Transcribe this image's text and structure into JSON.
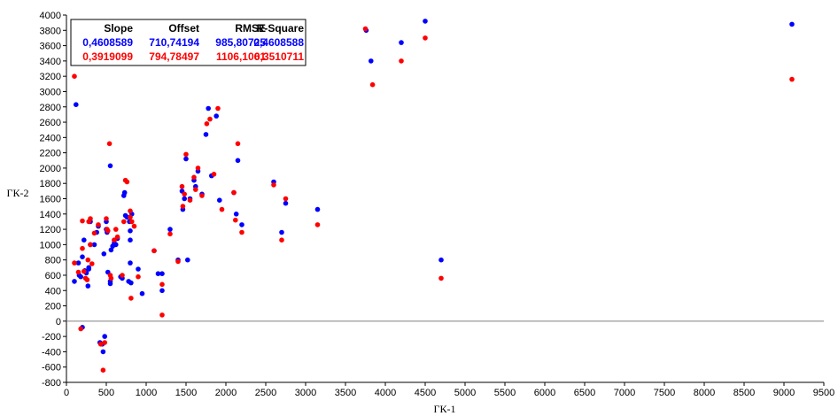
{
  "chart_data": {
    "type": "scatter",
    "xlabel": "ГК-1",
    "ylabel": "ГК-2",
    "xlim": [
      0,
      9500
    ],
    "ylim": [
      -800,
      4000
    ],
    "x_ticks": [
      0,
      500,
      1000,
      1500,
      2000,
      2500,
      3000,
      3500,
      4000,
      4500,
      5000,
      5500,
      6000,
      6500,
      7000,
      7500,
      8000,
      8500,
      9000,
      9500
    ],
    "y_ticks": [
      -800,
      -600,
      -400,
      -200,
      0,
      200,
      400,
      600,
      800,
      1000,
      1200,
      1400,
      1600,
      1800,
      2000,
      2200,
      2400,
      2600,
      2800,
      3000,
      3200,
      3400,
      3600,
      3800,
      4000
    ],
    "grid": false,
    "legend_table": {
      "headers": [
        "Slope",
        "Offset",
        "RMSE",
        "R-Square"
      ],
      "rows": [
        {
          "color": "#0000ff",
          "values": [
            "0,4608589",
            "710,74194",
            "985,80725",
            "0,4608588"
          ]
        },
        {
          "color": "#ff0000",
          "values": [
            "0,3919099",
            "794,78497",
            "1106,1061",
            "0,3510711"
          ]
        }
      ]
    },
    "series": [
      {
        "color": "#0000ff",
        "points": [
          [
            100,
            520
          ],
          [
            120,
            2830
          ],
          [
            150,
            760
          ],
          [
            160,
            600
          ],
          [
            180,
            580
          ],
          [
            200,
            -80
          ],
          [
            200,
            840
          ],
          [
            220,
            1060
          ],
          [
            230,
            660
          ],
          [
            250,
            630
          ],
          [
            270,
            460
          ],
          [
            280,
            700
          ],
          [
            280,
            680
          ],
          [
            300,
            1300
          ],
          [
            300,
            1000
          ],
          [
            350,
            1000
          ],
          [
            380,
            1160
          ],
          [
            400,
            1240
          ],
          [
            420,
            -280
          ],
          [
            450,
            -300
          ],
          [
            460,
            -400
          ],
          [
            470,
            880
          ],
          [
            480,
            -200
          ],
          [
            500,
            1300
          ],
          [
            500,
            1200
          ],
          [
            510,
            1160
          ],
          [
            520,
            640
          ],
          [
            550,
            2030
          ],
          [
            550,
            520
          ],
          [
            550,
            490
          ],
          [
            560,
            930
          ],
          [
            580,
            980
          ],
          [
            600,
            1020
          ],
          [
            600,
            1060
          ],
          [
            620,
            1000
          ],
          [
            640,
            1080
          ],
          [
            680,
            580
          ],
          [
            700,
            560
          ],
          [
            720,
            1640
          ],
          [
            730,
            1680
          ],
          [
            740,
            1380
          ],
          [
            760,
            1360
          ],
          [
            780,
            520
          ],
          [
            790,
            1300
          ],
          [
            800,
            760
          ],
          [
            800,
            1060
          ],
          [
            800,
            1180
          ],
          [
            810,
            500
          ],
          [
            820,
            1400
          ],
          [
            900,
            680
          ],
          [
            950,
            360
          ],
          [
            1100,
            920
          ],
          [
            1150,
            620
          ],
          [
            1200,
            620
          ],
          [
            1200,
            400
          ],
          [
            1300,
            1200
          ],
          [
            1400,
            800
          ],
          [
            1450,
            1700
          ],
          [
            1460,
            1460
          ],
          [
            1480,
            1600
          ],
          [
            1500,
            2120
          ],
          [
            1520,
            800
          ],
          [
            1550,
            1600
          ],
          [
            1600,
            1840
          ],
          [
            1620,
            1760
          ],
          [
            1650,
            1960
          ],
          [
            1700,
            1660
          ],
          [
            1750,
            2440
          ],
          [
            1780,
            2780
          ],
          [
            1820,
            1900
          ],
          [
            1880,
            2680
          ],
          [
            1920,
            1580
          ],
          [
            2100,
            1680
          ],
          [
            2130,
            1400
          ],
          [
            2150,
            2100
          ],
          [
            2200,
            1260
          ],
          [
            2600,
            1820
          ],
          [
            2700,
            1160
          ],
          [
            2750,
            1540
          ],
          [
            3150,
            1460
          ],
          [
            3760,
            3800
          ],
          [
            3820,
            3400
          ],
          [
            4200,
            3640
          ],
          [
            4500,
            3920
          ],
          [
            4700,
            800
          ],
          [
            9100,
            3880
          ]
        ]
      },
      {
        "color": "#ff0000",
        "points": [
          [
            100,
            3200
          ],
          [
            100,
            760
          ],
          [
            150,
            640
          ],
          [
            180,
            -100
          ],
          [
            200,
            950
          ],
          [
            200,
            1310
          ],
          [
            220,
            650
          ],
          [
            240,
            560
          ],
          [
            260,
            540
          ],
          [
            270,
            800
          ],
          [
            280,
            1300
          ],
          [
            300,
            1340
          ],
          [
            300,
            1000
          ],
          [
            320,
            750
          ],
          [
            350,
            1150
          ],
          [
            400,
            1260
          ],
          [
            430,
            -300
          ],
          [
            460,
            -640
          ],
          [
            480,
            -280
          ],
          [
            500,
            1340
          ],
          [
            510,
            1200
          ],
          [
            520,
            1180
          ],
          [
            540,
            2320
          ],
          [
            550,
            600
          ],
          [
            560,
            560
          ],
          [
            600,
            1060
          ],
          [
            620,
            1200
          ],
          [
            640,
            1100
          ],
          [
            700,
            600
          ],
          [
            720,
            1300
          ],
          [
            740,
            1840
          ],
          [
            760,
            1820
          ],
          [
            800,
            1440
          ],
          [
            800,
            1360
          ],
          [
            810,
            300
          ],
          [
            820,
            1300
          ],
          [
            850,
            1240
          ],
          [
            900,
            580
          ],
          [
            1100,
            920
          ],
          [
            1200,
            80
          ],
          [
            1200,
            480
          ],
          [
            1300,
            1140
          ],
          [
            1400,
            780
          ],
          [
            1450,
            1760
          ],
          [
            1460,
            1500
          ],
          [
            1480,
            1660
          ],
          [
            1500,
            2180
          ],
          [
            1550,
            1580
          ],
          [
            1600,
            1880
          ],
          [
            1620,
            1720
          ],
          [
            1650,
            2000
          ],
          [
            1700,
            1640
          ],
          [
            1760,
            2580
          ],
          [
            1800,
            2640
          ],
          [
            1850,
            1920
          ],
          [
            1900,
            2780
          ],
          [
            1950,
            1460
          ],
          [
            2100,
            1680
          ],
          [
            2120,
            1320
          ],
          [
            2150,
            2320
          ],
          [
            2200,
            1160
          ],
          [
            2600,
            1780
          ],
          [
            2700,
            1060
          ],
          [
            2750,
            1600
          ],
          [
            3150,
            1260
          ],
          [
            3750,
            3820
          ],
          [
            3840,
            3090
          ],
          [
            4200,
            3400
          ],
          [
            4500,
            3700
          ],
          [
            4700,
            560
          ],
          [
            9100,
            3160
          ]
        ]
      }
    ]
  }
}
